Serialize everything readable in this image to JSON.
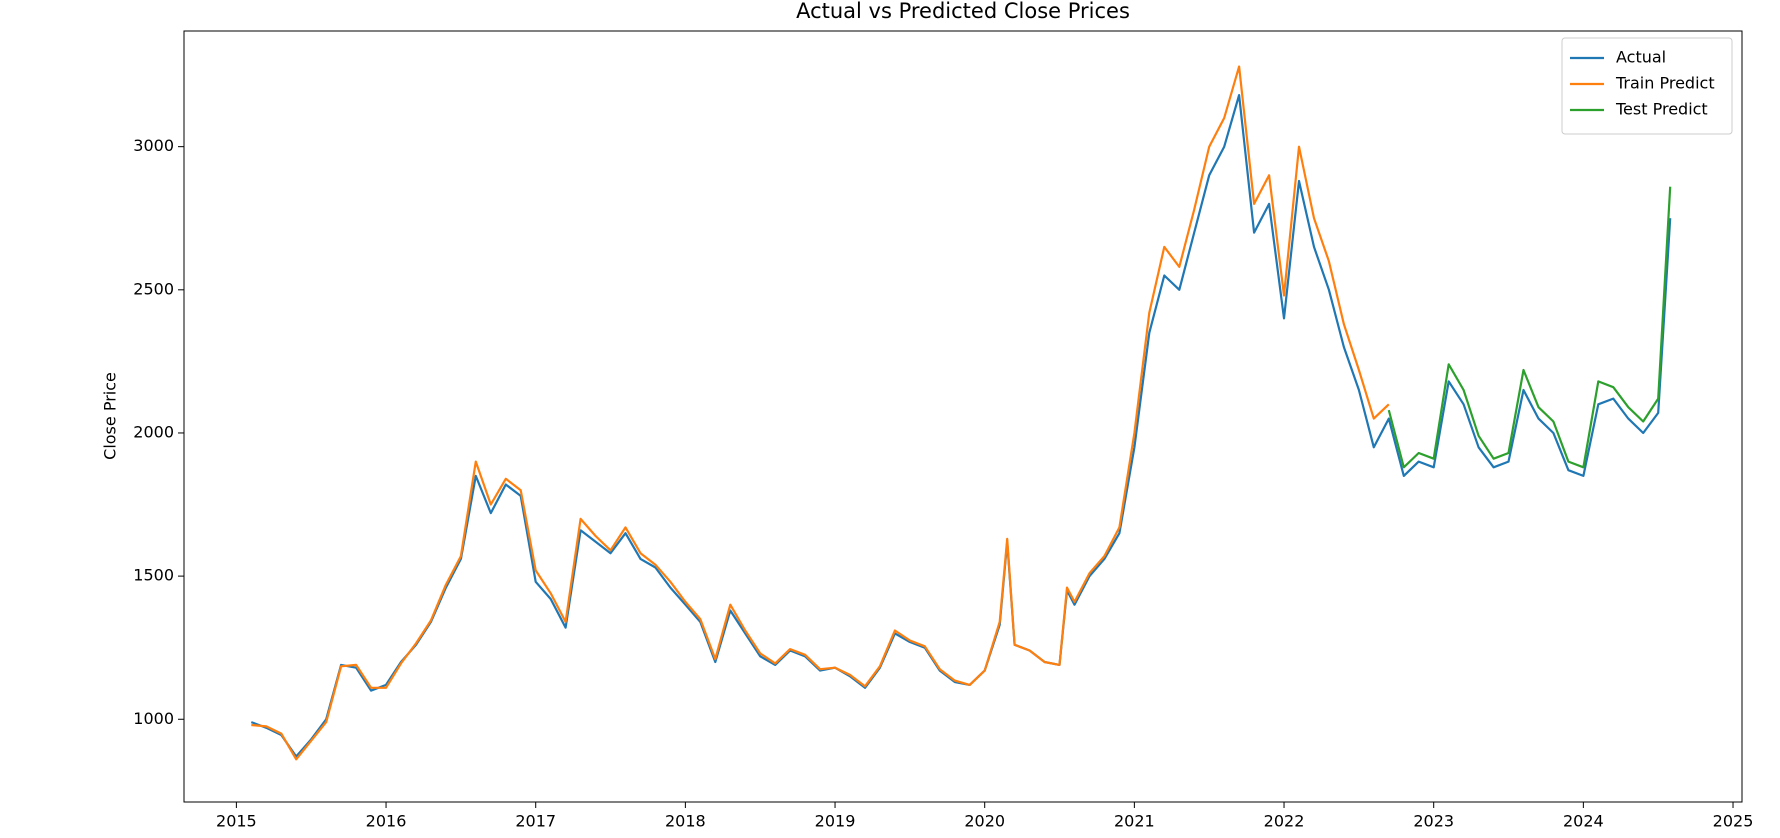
{
  "chart_data": {
    "type": "line",
    "title": "Actual vs Predicted Close Prices",
    "y_label": "Close Price",
    "x": [
      2015.1,
      2015.2,
      2015.3,
      2015.4,
      2015.5,
      2015.6,
      2015.7,
      2015.8,
      2015.9,
      2016.0,
      2016.1,
      2016.2,
      2016.3,
      2016.4,
      2016.5,
      2016.6,
      2016.7,
      2016.8,
      2016.9,
      2017.0,
      2017.1,
      2017.2,
      2017.3,
      2017.4,
      2017.5,
      2017.6,
      2017.7,
      2017.8,
      2017.9,
      2018.0,
      2018.1,
      2018.2,
      2018.3,
      2018.4,
      2018.5,
      2018.6,
      2018.7,
      2018.8,
      2018.9,
      2019.0,
      2019.1,
      2019.2,
      2019.3,
      2019.4,
      2019.5,
      2019.6,
      2019.7,
      2019.8,
      2019.9,
      2020.0,
      2020.1,
      2020.15,
      2020.2,
      2020.3,
      2020.4,
      2020.5,
      2020.55,
      2020.6,
      2020.7,
      2020.8,
      2020.9,
      2021.0,
      2021.1,
      2021.2,
      2021.3,
      2021.4,
      2021.5,
      2021.6,
      2021.7,
      2021.8,
      2021.9,
      2022.0,
      2022.1,
      2022.2,
      2022.3,
      2022.4,
      2022.5,
      2022.6,
      2022.7,
      2022.8,
      2022.9,
      2023.0,
      2023.1,
      2023.2,
      2023.3,
      2023.4,
      2023.5,
      2023.6,
      2023.7,
      2023.8,
      2023.9,
      2024.0,
      2024.1,
      2024.2,
      2024.3,
      2024.4,
      2024.5,
      2024.58
    ],
    "series": [
      {
        "name": "Actual",
        "color": "#1f77b4",
        "values": [
          990,
          970,
          945,
          870,
          930,
          1000,
          1190,
          1180,
          1100,
          1120,
          1200,
          1260,
          1340,
          1460,
          1560,
          1850,
          1720,
          1820,
          1780,
          1480,
          1420,
          1320,
          1660,
          1620,
          1580,
          1650,
          1560,
          1530,
          1460,
          1400,
          1340,
          1200,
          1380,
          1300,
          1220,
          1190,
          1240,
          1220,
          1170,
          1180,
          1150,
          1110,
          1180,
          1300,
          1270,
          1250,
          1170,
          1130,
          1120,
          1170,
          1330,
          1620,
          1260,
          1240,
          1200,
          1190,
          1450,
          1400,
          1500,
          1560,
          1650,
          1950,
          2350,
          2550,
          2500,
          2700,
          2900,
          3000,
          3180,
          2700,
          2800,
          2400,
          2880,
          2650,
          2500,
          2300,
          2150,
          1950,
          2050,
          1850,
          1900,
          1880,
          2180,
          2100,
          1950,
          1880,
          1900,
          2150,
          2050,
          2000,
          1870,
          1850,
          2100,
          2120,
          2050,
          2000,
          2070,
          2750
        ]
      },
      {
        "name": "Train Predict",
        "color": "#ff7f0e",
        "values": [
          980,
          975,
          950,
          860,
          925,
          990,
          1185,
          1190,
          1110,
          1110,
          1195,
          1265,
          1345,
          1470,
          1570,
          1900,
          1750,
          1840,
          1800,
          1520,
          1440,
          1340,
          1700,
          1640,
          1590,
          1670,
          1580,
          1540,
          1480,
          1410,
          1350,
          1210,
          1400,
          1310,
          1230,
          1195,
          1245,
          1225,
          1175,
          1180,
          1155,
          1115,
          1185,
          1310,
          1275,
          1255,
          1175,
          1135,
          1120,
          1170,
          1340,
          1630,
          1260,
          1240,
          1200,
          1190,
          1460,
          1410,
          1510,
          1570,
          1670,
          2000,
          2420,
          2650,
          2580,
          2780,
          3000,
          3100,
          3280,
          2800,
          2900,
          2480,
          3000,
          2750,
          2600,
          2380,
          2220,
          2050,
          2100,
          null,
          null,
          null,
          null,
          null,
          null,
          null,
          null,
          null,
          null,
          null,
          null,
          null,
          null,
          null,
          null,
          null,
          null,
          null
        ]
      },
      {
        "name": "Test Predict",
        "color": "#2ca02c",
        "values": [
          null,
          null,
          null,
          null,
          null,
          null,
          null,
          null,
          null,
          null,
          null,
          null,
          null,
          null,
          null,
          null,
          null,
          null,
          null,
          null,
          null,
          null,
          null,
          null,
          null,
          null,
          null,
          null,
          null,
          null,
          null,
          null,
          null,
          null,
          null,
          null,
          null,
          null,
          null,
          null,
          null,
          null,
          null,
          null,
          null,
          null,
          null,
          null,
          null,
          null,
          null,
          null,
          null,
          null,
          null,
          null,
          null,
          null,
          null,
          null,
          null,
          null,
          null,
          null,
          null,
          null,
          null,
          null,
          null,
          null,
          null,
          null,
          null,
          null,
          null,
          null,
          null,
          null,
          2080,
          1880,
          1930,
          1910,
          2240,
          2150,
          1990,
          1910,
          1930,
          2220,
          2090,
          2040,
          1900,
          1880,
          2180,
          2160,
          2090,
          2040,
          2120,
          2860
        ]
      }
    ],
    "xlim": [
      2014.65,
      2025.06
    ],
    "xticks": [
      2015,
      2016,
      2017,
      2018,
      2019,
      2020,
      2021,
      2022,
      2023,
      2024,
      2025
    ],
    "ylim": [
      711,
      3404
    ],
    "yticks": [
      1000,
      1500,
      2000,
      2500,
      3000
    ],
    "grid": false,
    "legend": "upper right"
  }
}
